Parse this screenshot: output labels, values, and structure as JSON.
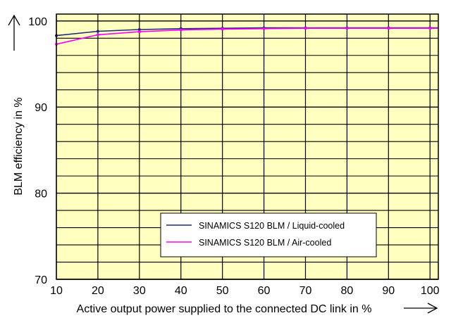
{
  "chart_data": {
    "type": "line",
    "xlabel": "Active output power supplied to the connected DC link in %",
    "ylabel": "BLM efficiency in %",
    "xlim": [
      10,
      102
    ],
    "ylim": [
      70,
      100.8
    ],
    "x_ticks": [
      "10",
      "20",
      "30",
      "40",
      "50",
      "60",
      "70",
      "80",
      "90",
      "100"
    ],
    "y_ticks": [
      "70",
      "80",
      "90",
      "100"
    ],
    "grid": true,
    "legend_position": "lower-center",
    "plot_background": "#ffffc0",
    "series": [
      {
        "name": "SINAMICS S120 BLM / Liquid-cooled",
        "color": "#1f2a78",
        "x": [
          10,
          20,
          30,
          40,
          50,
          60,
          70,
          80,
          90,
          100,
          102
        ],
        "y": [
          98.3,
          98.8,
          99.0,
          99.1,
          99.15,
          99.2,
          99.2,
          99.2,
          99.2,
          99.2,
          99.2
        ]
      },
      {
        "name": "SINAMICS S120 BLM / Air-cooled",
        "color": "#ff00ff",
        "x": [
          10,
          20,
          30,
          40,
          50,
          60,
          70,
          80,
          90,
          100,
          102
        ],
        "y": [
          97.3,
          98.4,
          98.75,
          98.95,
          99.05,
          99.1,
          99.15,
          99.15,
          99.15,
          99.15,
          99.15
        ]
      }
    ]
  }
}
